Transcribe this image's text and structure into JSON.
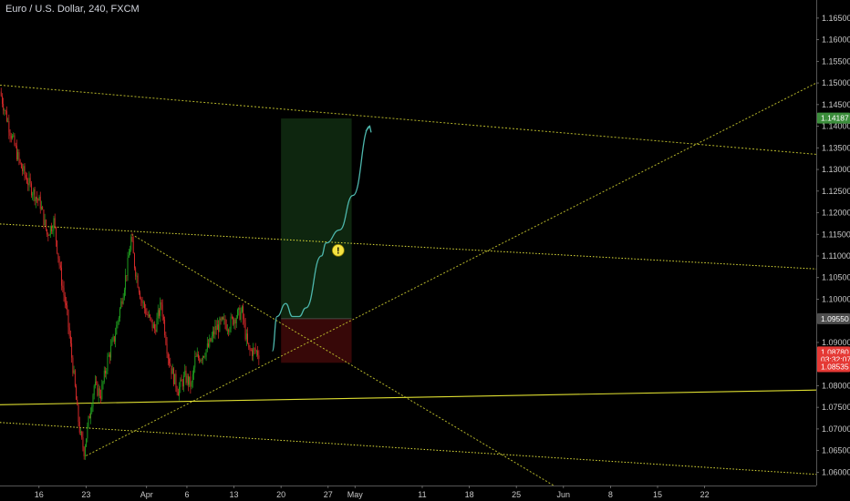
{
  "header": {
    "title": "Euro / U.S. Dollar, 240, FXCM"
  },
  "chart_data": {
    "type": "candlestick",
    "title": "Euro / U.S. Dollar, 240, FXCM",
    "symbol": "Euro / U.S. Dollar",
    "interval": "240",
    "source": "FXCM",
    "x_range_days": [
      0,
      121.4
    ],
    "ylim": [
      1.0565,
      1.1675
    ],
    "y_ticks": [
      "1.16500",
      "1.16000",
      "1.15500",
      "1.15000",
      "1.14500",
      "1.14000",
      "1.13500",
      "1.13000",
      "1.12500",
      "1.12000",
      "1.11500",
      "1.11000",
      "1.10500",
      "1.10000",
      "1.09000",
      "1.08000",
      "1.07500",
      "1.07000",
      "1.06500",
      "1.06000"
    ],
    "x_ticks": [
      {
        "label": "16",
        "day": 5.8
      },
      {
        "label": "23",
        "day": 12.8
      },
      {
        "label": "Apr",
        "day": 21.8
      },
      {
        "label": "6",
        "day": 27.8
      },
      {
        "label": "13",
        "day": 34.8
      },
      {
        "label": "20",
        "day": 41.8
      },
      {
        "label": "27",
        "day": 48.8
      },
      {
        "label": "May",
        "day": 52.8
      },
      {
        "label": "11",
        "day": 62.8
      },
      {
        "label": "18",
        "day": 69.8
      },
      {
        "label": "25",
        "day": 76.8
      },
      {
        "label": "Jun",
        "day": 83.8
      },
      {
        "label": "8",
        "day": 90.8
      },
      {
        "label": "15",
        "day": 97.8
      },
      {
        "label": "22",
        "day": 104.8
      }
    ],
    "price_path": [
      [
        0,
        1.148
      ],
      [
        1.5,
        1.139
      ],
      [
        3,
        1.131
      ],
      [
        4.5,
        1.126
      ],
      [
        6,
        1.122
      ],
      [
        7,
        1.115
      ],
      [
        8,
        1.118
      ],
      [
        9,
        1.106
      ],
      [
        10,
        1.096
      ],
      [
        11,
        1.082
      ],
      [
        11.5,
        1.074
      ],
      [
        12,
        1.068
      ],
      [
        12.5,
        1.065
      ],
      [
        13.2,
        1.072
      ],
      [
        14,
        1.08
      ],
      [
        15,
        1.078
      ],
      [
        16,
        1.086
      ],
      [
        17,
        1.091
      ],
      [
        18,
        1.099
      ],
      [
        19,
        1.108
      ],
      [
        19.5,
        1.114
      ],
      [
        20,
        1.108
      ],
      [
        21,
        1.1
      ],
      [
        22,
        1.096
      ],
      [
        23,
        1.093
      ],
      [
        24,
        1.099
      ],
      [
        25,
        1.087
      ],
      [
        25.8,
        1.082
      ],
      [
        26.5,
        1.079
      ],
      [
        27.5,
        1.082
      ],
      [
        28.5,
        1.08
      ],
      [
        29,
        1.086
      ],
      [
        30,
        1.087
      ],
      [
        31,
        1.089
      ],
      [
        32,
        1.093
      ],
      [
        33,
        1.0945
      ],
      [
        34,
        1.094
      ],
      [
        35,
        1.096
      ],
      [
        36,
        1.097
      ],
      [
        36.5,
        1.092
      ],
      [
        37,
        1.088
      ],
      [
        38,
        1.088
      ],
      [
        38.5,
        1.0875
      ]
    ],
    "series": [
      {
        "name": "projection",
        "type": "line",
        "points": [
          [
            40.5,
            1.088
          ],
          [
            41.2,
            1.096
          ],
          [
            42.5,
            1.099
          ],
          [
            43.5,
            1.096
          ],
          [
            44.5,
            1.096
          ],
          [
            45.5,
            1.098
          ],
          [
            47.8,
            1.11
          ],
          [
            48.5,
            1.113
          ],
          [
            50.5,
            1.116
          ],
          [
            52.5,
            1.124
          ],
          [
            55,
            1.14
          ]
        ]
      }
    ],
    "trade": {
      "entry": 1.0955,
      "target": 1.1418,
      "stop": 1.0853,
      "from_day": 41.8,
      "to_day": 52.3
    },
    "trendlines": [
      {
        "from": [
          0,
          1.1495
        ],
        "to": [
          121.4,
          1.1335
        ],
        "style": "dashed",
        "color": "#b5b52a"
      },
      {
        "from": [
          12.8,
          1.0638
        ],
        "to": [
          121.4,
          1.15
        ],
        "style": "dashed",
        "color": "#b5b52a"
      },
      {
        "from": [
          19.6,
          1.115
        ],
        "to": [
          82.8,
          1.0565
        ],
        "style": "dashed",
        "color": "#b5b52a"
      },
      {
        "from": [
          0,
          1.1174
        ],
        "to": [
          121.4,
          1.107
        ],
        "style": "dotted",
        "color": "#e0e03a"
      },
      {
        "from": [
          0,
          1.0715
        ],
        "to": [
          121.4,
          1.0595
        ],
        "style": "dotted",
        "color": "#e0e03a"
      },
      {
        "from": [
          0,
          1.0756
        ],
        "to": [
          121.4,
          1.079
        ],
        "style": "solid",
        "color": "#dede30"
      }
    ],
    "price_labels": [
      {
        "value": "1.14187",
        "price": 1.14187,
        "color": "#3b8d3b"
      },
      {
        "value": "1.09550",
        "price": 1.0955,
        "color": "#4d4d4d"
      },
      {
        "value": "1.08780",
        "price": 1.0878,
        "color": "#e53935"
      },
      {
        "value": "03:32:07",
        "price": 1.0861,
        "color": "#e53935"
      },
      {
        "value": "1.08535",
        "price": 1.0844,
        "color": "#e53935"
      }
    ],
    "alert_marker": {
      "symbol": "!",
      "day": 50.3,
      "price": 1.1113
    },
    "grid": false
  }
}
